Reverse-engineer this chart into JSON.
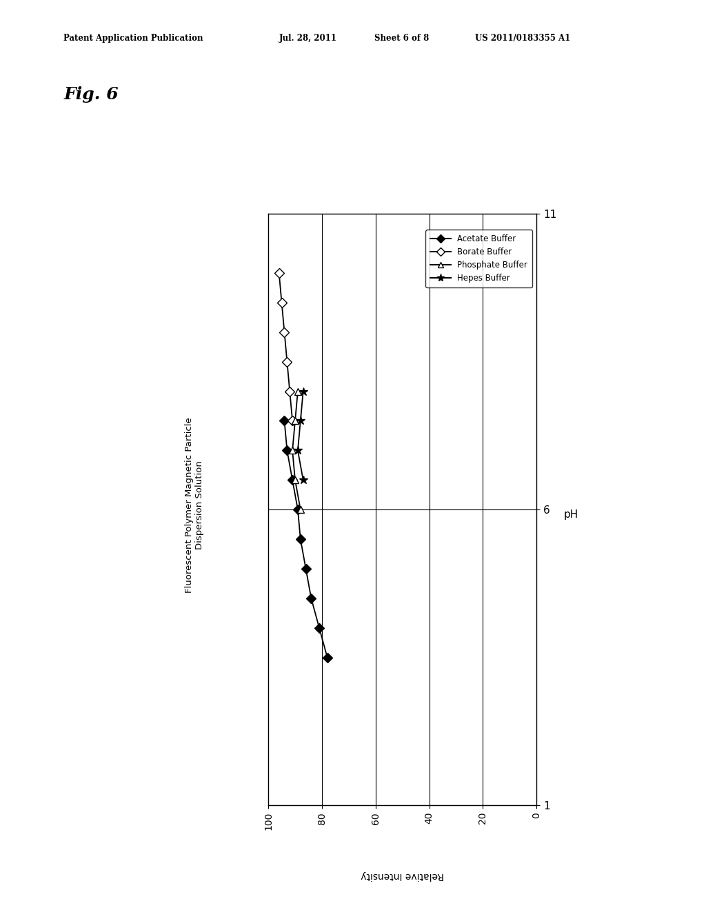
{
  "header_text": "Patent Application Publication",
  "header_date": "Jul. 28, 2011",
  "header_sheet": "Sheet 6 of 8",
  "header_patent": "US 2011/0183355 A1",
  "fig_label": "Fig. 6",
  "chart_title_line1": "Fluorescent Polymer Magnetic Particle",
  "chart_title_line2": "Dispersion Solution",
  "xlabel_label": "Relative Intensity",
  "ylabel_label": "pH",
  "background_color": "#ffffff",
  "acetate_ph": [
    3.5,
    4.0,
    4.5,
    5.0,
    5.5,
    6.0,
    6.5,
    7.0,
    7.5
  ],
  "acetate_int": [
    78,
    81,
    84,
    86,
    88,
    89,
    91,
    93,
    94
  ],
  "borate_ph": [
    7.5,
    8.0,
    8.5,
    9.0,
    9.5,
    10.0
  ],
  "borate_int": [
    91,
    92,
    93,
    94,
    95,
    96
  ],
  "phosphate_ph": [
    6.0,
    6.5,
    7.0,
    7.5,
    8.0
  ],
  "phosphate_int": [
    88,
    90,
    91,
    90,
    89
  ],
  "hepes_ph": [
    6.5,
    7.0,
    7.5,
    8.0
  ],
  "hepes_int": [
    87,
    89,
    88,
    87
  ],
  "intensity_ticks": [
    0,
    20,
    40,
    60,
    80,
    100
  ],
  "intensity_labels": [
    "0",
    "20",
    "40",
    "60",
    "80",
    "100"
  ],
  "ph_ticks": [
    1,
    6,
    11
  ],
  "ph_labels": [
    "1",
    "6",
    "11"
  ],
  "vlines_intensity": [
    20,
    40,
    60,
    80
  ],
  "xlim_intensity": [
    0,
    100
  ],
  "ph_range": [
    1,
    11
  ]
}
